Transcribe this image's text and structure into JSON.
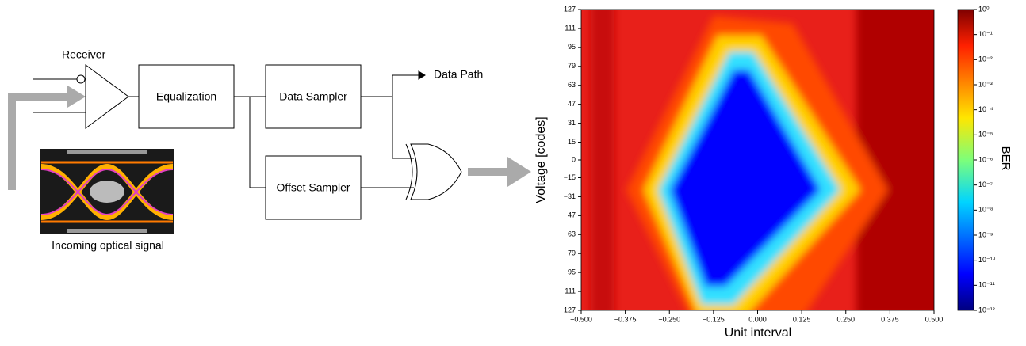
{
  "diagram": {
    "receiver": "Receiver",
    "equalization": "Equalization",
    "data_sampler": "Data Sampler",
    "offset_sampler": "Offset Sampler",
    "data_path": "Data Path",
    "input_caption": "Incoming optical signal"
  },
  "chart_data": {
    "type": "heatmap",
    "xlabel": "Unit interval",
    "ylabel": "Voltage [codes]",
    "colorbar_label": "BER",
    "xlim": [
      -0.5,
      0.5
    ],
    "xticks": [
      {
        "value": -0.5,
        "label": "−0.500"
      },
      {
        "value": -0.375,
        "label": "−0.375"
      },
      {
        "value": -0.25,
        "label": "−0.250"
      },
      {
        "value": -0.125,
        "label": "−0.125"
      },
      {
        "value": 0,
        "label": "0.000"
      },
      0.125,
      {
        "value": 0.25,
        "label": "0.250"
      },
      0.375,
      {
        "value": 0.5,
        "label": "0.500"
      }
    ],
    "ylim": [
      -127,
      127
    ],
    "yticks": [
      127,
      111,
      95,
      79,
      63,
      47,
      31,
      15,
      0,
      {
        "value": -15,
        "label": "−15"
      },
      {
        "value": -31,
        "label": "−31"
      },
      {
        "value": -47,
        "label": "−47"
      },
      {
        "value": -63,
        "label": "−63"
      },
      {
        "value": -79,
        "label": "−79"
      },
      {
        "value": -95,
        "label": "−95"
      },
      {
        "value": -111,
        "label": "−111"
      },
      {
        "value": -127,
        "label": "−127"
      }
    ],
    "colorbar_log": true,
    "clim": [
      1e-12,
      1
    ],
    "cticks": [
      {
        "value": 1,
        "label": "10⁰"
      },
      {
        "value": 0.1,
        "label": "10⁻¹"
      },
      {
        "value": 0.01,
        "label": "10⁻²"
      },
      {
        "value": 0.001,
        "label": "10⁻³"
      },
      {
        "value": 0.0001,
        "label": "10⁻⁴"
      },
      {
        "value": 1e-05,
        "label": "10⁻⁵"
      },
      {
        "value": 1e-06,
        "label": "10⁻⁶"
      },
      {
        "value": 1e-07,
        "label": "10⁻⁷"
      },
      {
        "value": 1e-08,
        "label": "10⁻⁸"
      },
      {
        "value": 1e-09,
        "label": "10⁻⁹"
      },
      {
        "value": 1e-10,
        "label": "10⁻¹⁰"
      },
      {
        "value": 1e-11,
        "label": "10⁻¹¹"
      },
      {
        "value": 1e-12,
        "label": "10⁻¹²"
      }
    ]
  }
}
